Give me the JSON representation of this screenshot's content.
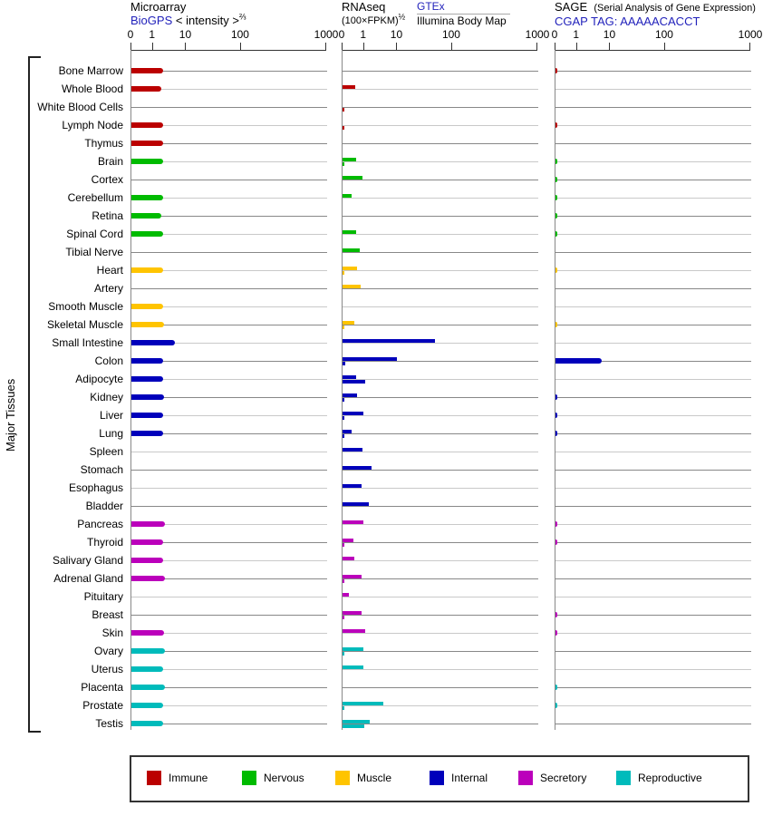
{
  "sidebar_label": "Major Tissues",
  "header": {
    "microarray": {
      "title": "Microarray",
      "link": "BioGPS",
      "unit": "< intensity >",
      "exponent": "⅔"
    },
    "rnaseq": {
      "title": "RNAseq",
      "unit": "(100×FPKM)",
      "exponent": "½",
      "link": "GTEx",
      "source2": "Illumina Body Map"
    },
    "sage": {
      "title": "SAGE",
      "subtitle": "(Serial Analysis of Gene Expression)",
      "link": "CGAP",
      "tag": "TAG: AAAAACACCT"
    }
  },
  "category_colors": {
    "Immune": "#bb0000",
    "Nervous": "#00bb00",
    "Muscle": "#ffc400",
    "Internal": "#0000bb",
    "Secretory": "#bb00bb",
    "Reproductive": "#00bbbb"
  },
  "legend": [
    {
      "label": "Immune",
      "color": "#bb0000"
    },
    {
      "label": "Nervous",
      "color": "#00bb00"
    },
    {
      "label": "Muscle",
      "color": "#ffc400"
    },
    {
      "label": "Internal",
      "color": "#0000bb"
    },
    {
      "label": "Secretory",
      "color": "#bb00bb"
    },
    {
      "label": "Reproductive",
      "color": "#00bbbb"
    }
  ],
  "chart_data": {
    "type": "bar",
    "orientation": "horizontal",
    "axis_note": "power-scale axis 0 to 1000; tick pos = percent of panel width; bar values below are percent of panel width",
    "axis_ticks": [
      {
        "label": "0",
        "pos": 0
      },
      {
        "label": "1",
        "pos": 11
      },
      {
        "label": "10",
        "pos": 28
      },
      {
        "label": "100",
        "pos": 56
      },
      {
        "label": "1000",
        "pos": 100
      }
    ],
    "panels": [
      {
        "name": "Microarray (BioGPS)"
      },
      {
        "name": "RNAseq (GTEx / Illumina Body Map)"
      },
      {
        "name": "SAGE (CGAP)"
      }
    ],
    "tissues": [
      {
        "name": "Bone Marrow",
        "category": "Immune",
        "microarray": 16,
        "gtex": 0,
        "bodymap": 0,
        "sage": 1
      },
      {
        "name": "Whole Blood",
        "category": "Immune",
        "microarray": 15.5,
        "gtex": 6.5,
        "bodymap": 0,
        "sage": 0
      },
      {
        "name": "White Blood Cells",
        "category": "Immune",
        "microarray": 0,
        "gtex": 0,
        "bodymap": 1,
        "sage": 0
      },
      {
        "name": "Lymph Node",
        "category": "Immune",
        "microarray": 16,
        "gtex": 0,
        "bodymap": 1,
        "sage": 1
      },
      {
        "name": "Thymus",
        "category": "Immune",
        "microarray": 16,
        "gtex": 0,
        "bodymap": 0,
        "sage": 0
      },
      {
        "name": "Brain",
        "category": "Nervous",
        "microarray": 16,
        "gtex": 7,
        "bodymap": 1,
        "sage": 1
      },
      {
        "name": "Cortex",
        "category": "Nervous",
        "microarray": 0,
        "gtex": 10,
        "bodymap": 0,
        "sage": 1
      },
      {
        "name": "Cerebellum",
        "category": "Nervous",
        "microarray": 16,
        "gtex": 4.6,
        "bodymap": 0,
        "sage": 1
      },
      {
        "name": "Retina",
        "category": "Nervous",
        "microarray": 15.5,
        "gtex": 0,
        "bodymap": 0,
        "sage": 1
      },
      {
        "name": "Spinal Cord",
        "category": "Nervous",
        "microarray": 16,
        "gtex": 7,
        "bodymap": 0,
        "sage": 1
      },
      {
        "name": "Tibial Nerve",
        "category": "Nervous",
        "microarray": 0,
        "gtex": 8.8,
        "bodymap": 0,
        "sage": 0
      },
      {
        "name": "Heart",
        "category": "Muscle",
        "microarray": 16,
        "gtex": 7.4,
        "bodymap": 1,
        "sage": 1
      },
      {
        "name": "Artery",
        "category": "Muscle",
        "microarray": 0,
        "gtex": 9.2,
        "bodymap": 0,
        "sage": 0
      },
      {
        "name": "Smooth Muscle",
        "category": "Muscle",
        "microarray": 16,
        "gtex": 0,
        "bodymap": 0,
        "sage": 0
      },
      {
        "name": "Skeletal Muscle",
        "category": "Muscle",
        "microarray": 16.5,
        "gtex": 6,
        "bodymap": 1,
        "sage": 1
      },
      {
        "name": "Small Intestine",
        "category": "Internal",
        "microarray": 22,
        "gtex": 47,
        "bodymap": 0,
        "sage": 0
      },
      {
        "name": "Colon",
        "category": "Internal",
        "microarray": 16,
        "gtex": 28,
        "bodymap": 1.5,
        "sage": 23.5
      },
      {
        "name": "Adipocyte",
        "category": "Internal",
        "microarray": 16,
        "gtex": 7,
        "bodymap": 11.5,
        "sage": 0
      },
      {
        "name": "Kidney",
        "category": "Internal",
        "microarray": 16.5,
        "gtex": 7.4,
        "bodymap": 1,
        "sage": 1
      },
      {
        "name": "Liver",
        "category": "Internal",
        "microarray": 16,
        "gtex": 10.6,
        "bodymap": 1,
        "sage": 1
      },
      {
        "name": "Lung",
        "category": "Internal",
        "microarray": 16,
        "gtex": 4.6,
        "bodymap": 1,
        "sage": 1
      },
      {
        "name": "Spleen",
        "category": "Internal",
        "microarray": 0,
        "gtex": 10,
        "bodymap": 0,
        "sage": 0
      },
      {
        "name": "Stomach",
        "category": "Internal",
        "microarray": 0,
        "gtex": 15,
        "bodymap": 0,
        "sage": 0
      },
      {
        "name": "Esophagus",
        "category": "Internal",
        "microarray": 0,
        "gtex": 9.7,
        "bodymap": 0,
        "sage": 0
      },
      {
        "name": "Bladder",
        "category": "Internal",
        "microarray": 0,
        "gtex": 13.4,
        "bodymap": 0,
        "sage": 0
      },
      {
        "name": "Pancreas",
        "category": "Secretory",
        "microarray": 17,
        "gtex": 10.6,
        "bodymap": 0,
        "sage": 1
      },
      {
        "name": "Thyroid",
        "category": "Secretory",
        "microarray": 16,
        "gtex": 5.5,
        "bodymap": 1,
        "sage": 1
      },
      {
        "name": "Salivary Gland",
        "category": "Secretory",
        "microarray": 16,
        "gtex": 6,
        "bodymap": 0,
        "sage": 0
      },
      {
        "name": "Adrenal Gland",
        "category": "Secretory",
        "microarray": 17,
        "gtex": 9.7,
        "bodymap": 1,
        "sage": 0
      },
      {
        "name": "Pituitary",
        "category": "Secretory",
        "microarray": 0,
        "gtex": 3.2,
        "bodymap": 0,
        "sage": 0
      },
      {
        "name": "Breast",
        "category": "Secretory",
        "microarray": 0,
        "gtex": 9.7,
        "bodymap": 1,
        "sage": 1
      },
      {
        "name": "Skin",
        "category": "Secretory",
        "microarray": 16.5,
        "gtex": 11.5,
        "bodymap": 0,
        "sage": 1
      },
      {
        "name": "Ovary",
        "category": "Reproductive",
        "microarray": 17,
        "gtex": 10.6,
        "bodymap": 1,
        "sage": 0
      },
      {
        "name": "Uterus",
        "category": "Reproductive",
        "microarray": 16,
        "gtex": 10.6,
        "bodymap": 0,
        "sage": 0
      },
      {
        "name": "Placenta",
        "category": "Reproductive",
        "microarray": 17,
        "gtex": 0,
        "bodymap": 0,
        "sage": 1
      },
      {
        "name": "Prostate",
        "category": "Reproductive",
        "microarray": 16,
        "gtex": 20.7,
        "bodymap": 1,
        "sage": 1
      },
      {
        "name": "Testis",
        "category": "Reproductive",
        "microarray": 16,
        "gtex": 13.8,
        "bodymap": 11.1,
        "sage": 0
      }
    ]
  }
}
